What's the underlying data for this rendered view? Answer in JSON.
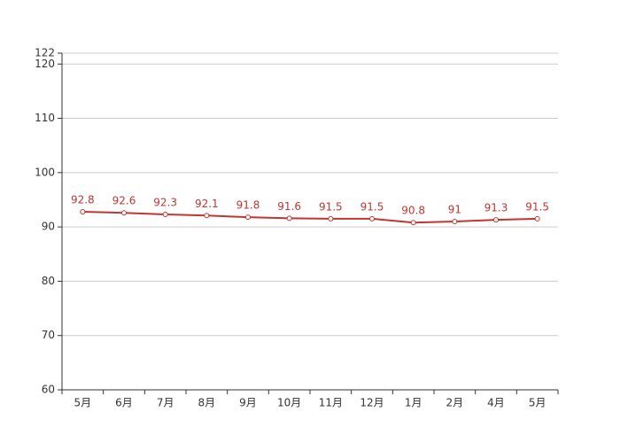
{
  "chart_data": {
    "type": "line",
    "categories": [
      "5月",
      "6月",
      "7月",
      "8月",
      "9月",
      "10月",
      "11月",
      "12月",
      "1月",
      "2月",
      "4月",
      "5月"
    ],
    "values": [
      92.8,
      92.6,
      92.3,
      92.1,
      91.8,
      91.6,
      91.5,
      91.5,
      90.8,
      91,
      91.3,
      91.5
    ],
    "color": "#c23531",
    "ylim": [
      60,
      122
    ],
    "yticks": [
      60,
      70,
      80,
      90,
      100,
      110,
      120,
      122
    ],
    "grid": true
  }
}
